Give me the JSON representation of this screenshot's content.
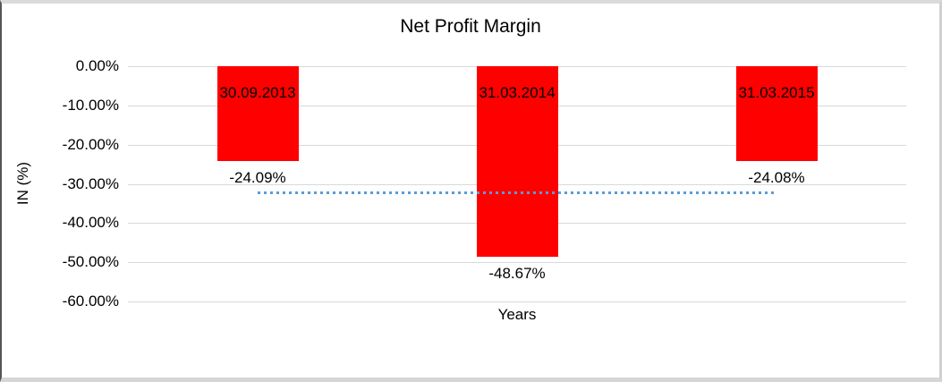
{
  "chart_data": {
    "type": "bar",
    "title": "Net Profit Margin",
    "xlabel": "Years",
    "ylabel": "IN (%)",
    "categories": [
      "30.09.2013",
      "31.03.2014",
      "31.03.2015"
    ],
    "values": [
      -24.09,
      -48.67,
      -24.08
    ],
    "value_labels": [
      "-24.09%",
      "-48.67%",
      "-24.08%"
    ],
    "ylim": [
      -60,
      0
    ],
    "yticks": [
      0,
      -10,
      -20,
      -30,
      -40,
      -50,
      -60
    ],
    "ytick_labels": [
      "0.00%",
      "-10.00%",
      "-20.00%",
      "-30.00%",
      "-40.00%",
      "-50.00%",
      "-60.00%"
    ],
    "grid": true,
    "legend_position": "none",
    "bar_color": "#FF0000",
    "gridline_color": "#D9D9D9",
    "average_line": {
      "value": -32.28,
      "color": "#5B9BD5",
      "style": "dotted"
    }
  }
}
